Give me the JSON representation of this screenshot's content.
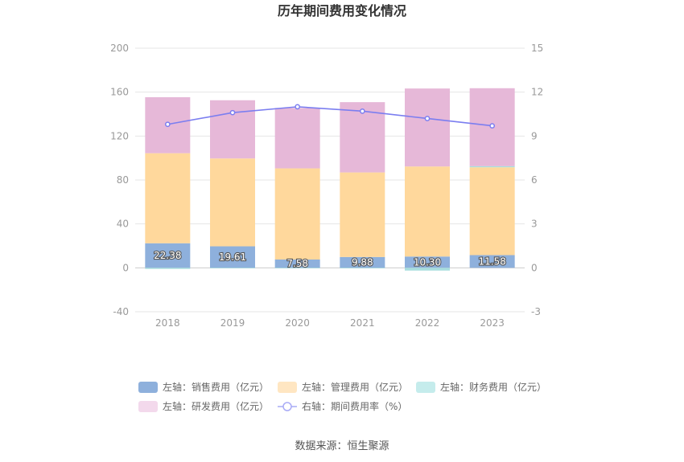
{
  "chart_data": {
    "type": "bar",
    "title": "历年期间费用变化情况",
    "categories": [
      "2018",
      "2019",
      "2020",
      "2021",
      "2022",
      "2023"
    ],
    "left_axis": {
      "min": -40,
      "max": 200,
      "ticks": [
        200,
        160,
        120,
        80,
        40,
        0,
        -40
      ]
    },
    "right_axis": {
      "min": -3,
      "max": 15,
      "ticks": [
        15,
        12,
        9,
        6,
        3,
        0,
        -3
      ]
    },
    "grid": true,
    "legend_position": "bottom",
    "series": [
      {
        "name": "左轴：销售费用（亿元）",
        "type": "bar",
        "axis": "left",
        "color": "#8eb0dc",
        "values": [
          22.38,
          19.61,
          7.58,
          9.88,
          10.3,
          11.58
        ],
        "labels": [
          "22.38",
          "19.61",
          "7.58",
          "9.88",
          "10.30",
          "11.58"
        ]
      },
      {
        "name": "左轴：管理费用（亿元）",
        "type": "bar",
        "axis": "left",
        "color": "#ffd89c",
        "values": [
          82,
          80,
          83,
          77,
          82,
          80
        ]
      },
      {
        "name": "左轴：财务费用（亿元）",
        "type": "bar",
        "axis": "left",
        "color": "#a8dede",
        "values": [
          -1,
          -0.5,
          -0.5,
          -0.5,
          -2.5,
          1
        ]
      },
      {
        "name": "左轴：研发费用（亿元）",
        "type": "bar",
        "axis": "left",
        "color": "#e6b8d8",
        "values": [
          51,
          53,
          55,
          64,
          71,
          71
        ]
      },
      {
        "name": "右轴：期间费用率（%）",
        "type": "line",
        "axis": "right",
        "color": "#7b7ef0",
        "values": [
          9.8,
          10.6,
          11.0,
          10.7,
          10.2,
          9.7
        ]
      }
    ],
    "legend": {
      "items": [
        {
          "label": "左轴：销售费用（亿元）",
          "color": "#8eb0dc",
          "kind": "bar"
        },
        {
          "label": "左轴：管理费用（亿元）",
          "color": "#ffe6c2",
          "kind": "bar"
        },
        {
          "label": "左轴：财务费用（亿元）",
          "color": "#c5ecec",
          "kind": "bar"
        },
        {
          "label": "左轴：研发费用（亿元）",
          "color": "#f3d9ec",
          "kind": "bar"
        },
        {
          "label": "右轴：期间费用率（%）",
          "color": "#a9abf6",
          "kind": "line"
        }
      ]
    },
    "source": "数据来源：恒生聚源"
  }
}
